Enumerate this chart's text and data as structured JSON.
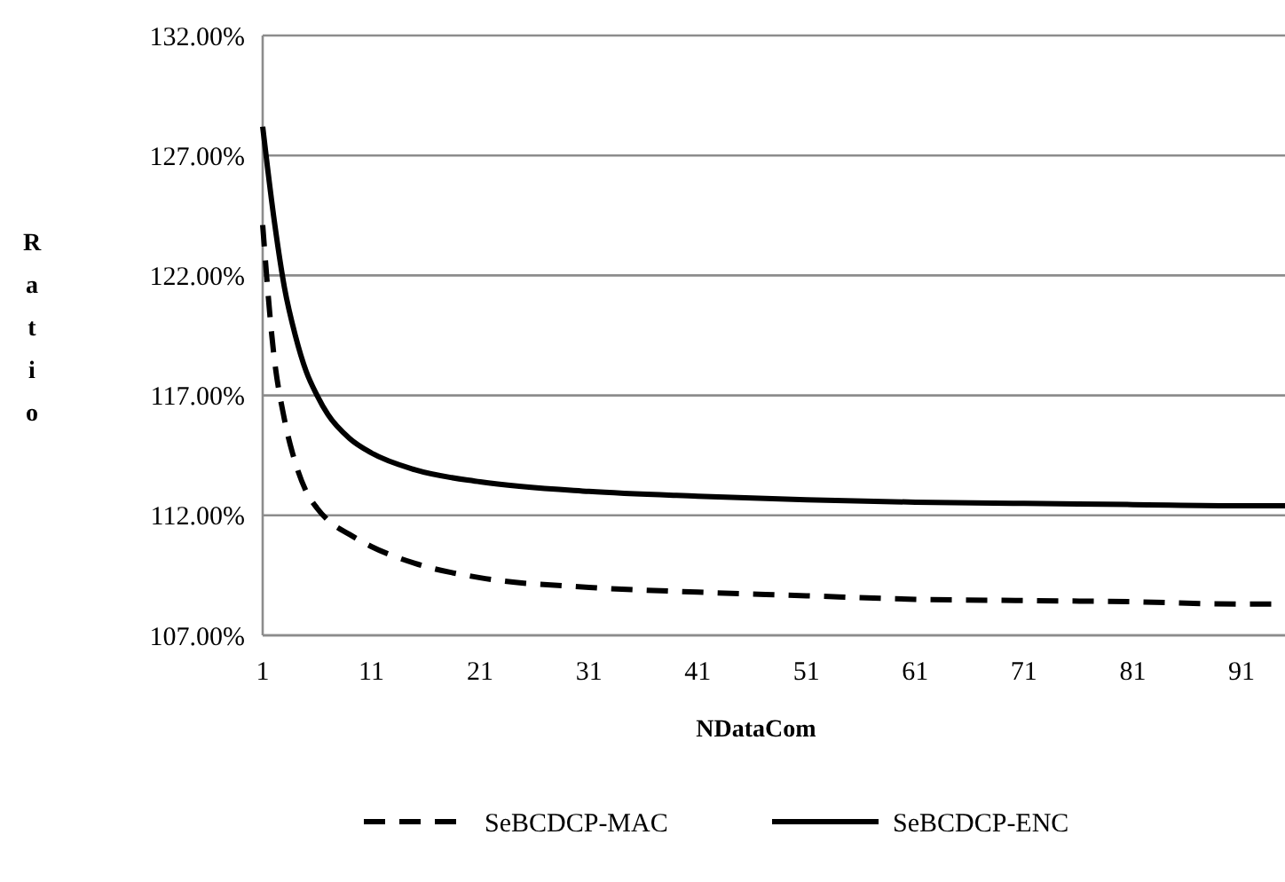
{
  "chart_data": {
    "type": "line",
    "xlabel": "NDataCom",
    "ylabel": "Ratio",
    "x": [
      1,
      2,
      3,
      4,
      5,
      6,
      7,
      9,
      11,
      15,
      21,
      31,
      41,
      51,
      61,
      71,
      81,
      91,
      95
    ],
    "xlim": [
      1,
      95
    ],
    "xticks": [
      1,
      11,
      21,
      31,
      41,
      51,
      61,
      71,
      81,
      91
    ],
    "ylim": [
      107,
      132
    ],
    "yticks": [
      {
        "value": 107,
        "label": "107.00%"
      },
      {
        "value": 112,
        "label": "112.00%"
      },
      {
        "value": 117,
        "label": "117.00%"
      },
      {
        "value": 122,
        "label": "122.00%"
      },
      {
        "value": 127,
        "label": "127.00%"
      },
      {
        "value": 132,
        "label": "132.00%"
      }
    ],
    "grid": "y",
    "legend": "bottom",
    "series": [
      {
        "name": "SeBCDCP-MAC",
        "color": "#000000",
        "line_style": "dashed",
        "values": [
          124.1,
          118.8,
          116.0,
          114.2,
          113.0,
          112.3,
          111.8,
          111.2,
          110.7,
          110.0,
          109.4,
          109.0,
          108.8,
          108.65,
          108.5,
          108.45,
          108.4,
          108.3,
          108.3
        ]
      },
      {
        "name": "SeBCDCP-ENC",
        "color": "#000000",
        "line_style": "solid",
        "values": [
          128.2,
          124.5,
          121.5,
          119.5,
          118.0,
          117.0,
          116.2,
          115.2,
          114.6,
          113.9,
          113.4,
          113.0,
          112.8,
          112.65,
          112.55,
          112.5,
          112.45,
          112.4,
          112.4
        ]
      }
    ]
  }
}
